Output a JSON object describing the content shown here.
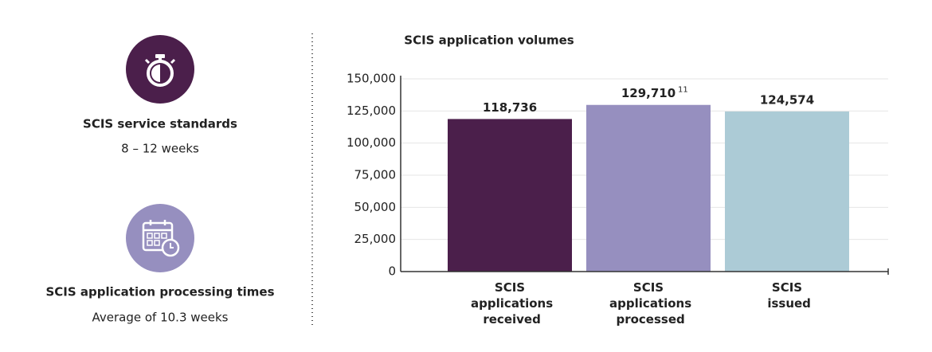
{
  "panel": {
    "items": [
      {
        "title": "SCIS service standards",
        "text": "8 – 12 weeks"
      },
      {
        "title": "SCIS application processing times",
        "text": "Average of 10.3 weeks"
      }
    ]
  },
  "chart_data": {
    "type": "bar",
    "title": "SCIS application volumes",
    "categories": [
      "SCIS applications received",
      "SCIS applications processed",
      "SCIS issued"
    ],
    "values": [
      118736,
      129710,
      124574
    ],
    "value_labels": [
      "118,736",
      "129,710",
      "124,574"
    ],
    "value_label_notes": [
      null,
      "11",
      null
    ],
    "colors": [
      "#4b1f4b",
      "#968fbf",
      "#accbd6"
    ],
    "ylim": [
      0,
      150000
    ],
    "yticks": [
      0,
      {
        "value": 25000,
        "label": "25,000"
      },
      {
        "value": 50000,
        "label": "50,000"
      },
      {
        "value": 75000,
        "label": "75,000"
      },
      {
        "value": 100000,
        "label": "100,000"
      },
      {
        "value": 125000,
        "label": "125,000"
      },
      {
        "value": 150000,
        "label": "150,000"
      }
    ],
    "grid": true
  }
}
